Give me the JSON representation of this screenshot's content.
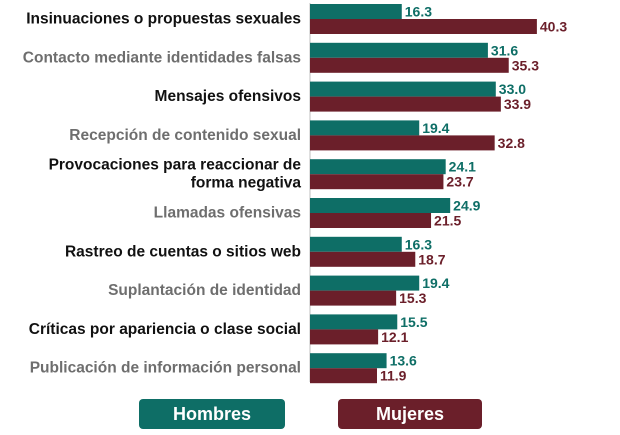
{
  "chart_data": {
    "type": "bar",
    "orientation": "horizontal",
    "categories": [
      "Insinuaciones o propuestas sexuales",
      "Contacto mediante identidades falsas",
      "Mensajes ofensivos",
      "Recepción de contenido sexual",
      "Provocaciones para reaccionar de forma negativa",
      "Llamadas ofensivas",
      "Rastreo de cuentas o sitios web",
      "Suplantación de identidad",
      "Críticas por apariencia o clase social",
      "Publicación de información personal"
    ],
    "category_lines": [
      [
        "Insinuaciones o propuestas sexuales"
      ],
      [
        "Contacto mediante identidades falsas"
      ],
      [
        "Mensajes ofensivos"
      ],
      [
        "Recepción de contenido sexual"
      ],
      [
        "Provocaciones para reaccionar de",
        "forma negativa"
      ],
      [
        "Llamadas ofensivas"
      ],
      [
        "Rastreo de cuentas o sitios web"
      ],
      [
        "Suplantación de identidad"
      ],
      [
        "Críticas por apariencia o clase social"
      ],
      [
        "Publicación de información personal"
      ]
    ],
    "series": [
      {
        "name": "Hombres",
        "color": "#0e6e66",
        "values": [
          16.3,
          31.6,
          33.0,
          19.4,
          24.1,
          24.9,
          16.3,
          19.4,
          15.5,
          13.6
        ],
        "labels": [
          "16.3",
          "31.6",
          "33.0",
          "19.4",
          "24.1",
          "24.9",
          "16.3",
          "19.4",
          "15.5",
          "13.6"
        ]
      },
      {
        "name": "Mujeres",
        "color": "#6b1f2a",
        "values": [
          40.3,
          35.3,
          33.9,
          32.8,
          23.7,
          21.5,
          18.7,
          15.3,
          12.1,
          11.9
        ],
        "labels": [
          "40.3",
          "35.3",
          "33.9",
          "32.8",
          "23.7",
          "21.5",
          "18.7",
          "15.3",
          "12.1",
          "11.9"
        ]
      }
    ],
    "label_colors": {
      "dark": "#111111",
      "gray": "#6e6e6e"
    },
    "category_label_style": [
      "dark",
      "gray",
      "dark",
      "gray",
      "dark",
      "gray",
      "dark",
      "gray",
      "dark",
      "gray"
    ],
    "grid": false,
    "legend": "bottom"
  },
  "legend": {
    "hombres": "Hombres",
    "mujeres": "Mujeres"
  }
}
